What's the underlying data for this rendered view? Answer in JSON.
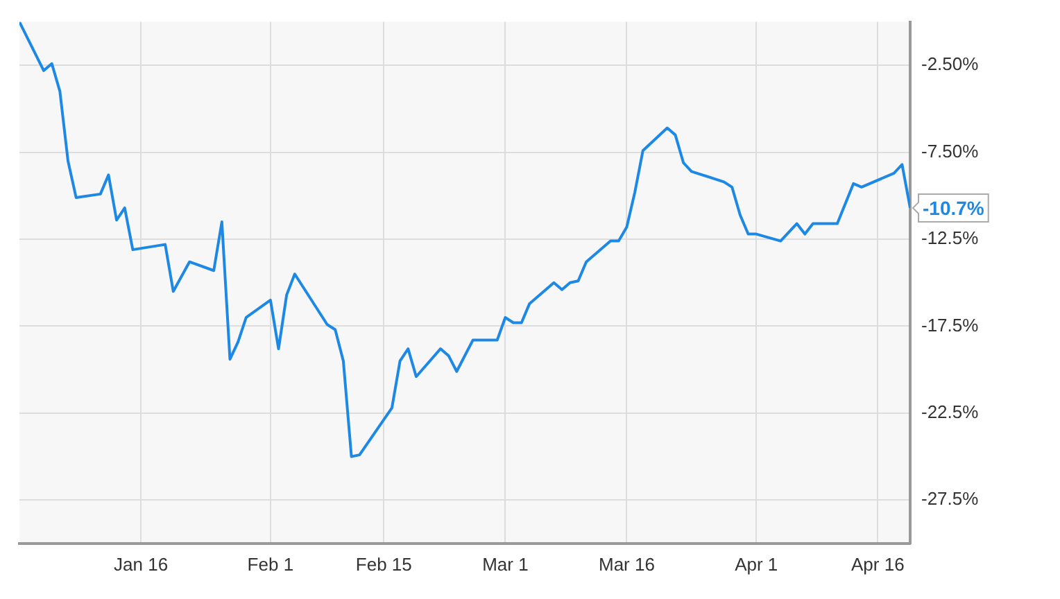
{
  "chart_data": {
    "type": "line",
    "x": [
      "--01-01",
      "--01-04",
      "--01-05",
      "--01-06",
      "--01-07",
      "--01-08",
      "--01-11",
      "--01-12",
      "--01-13",
      "--01-14",
      "--01-15",
      "--01-19",
      "--01-20",
      "--01-22",
      "--01-25",
      "--01-26",
      "--01-27",
      "--01-28",
      "--01-29",
      "--02-01",
      "--02-02",
      "--02-03",
      "--02-04",
      "--02-08",
      "--02-09",
      "--02-10",
      "--02-11",
      "--02-12",
      "--02-16",
      "--02-17",
      "--02-18",
      "--02-19",
      "--02-22",
      "--02-23",
      "--02-24",
      "--02-26",
      "--02-29",
      "--03-01",
      "--03-02",
      "--03-03",
      "--03-04",
      "--03-07",
      "--03-08",
      "--03-09",
      "--03-10",
      "--03-11",
      "--03-14",
      "--03-15",
      "--03-16",
      "--03-17",
      "--03-18",
      "--03-21",
      "--03-22",
      "--03-23",
      "--03-24",
      "--03-28",
      "--03-29",
      "--03-30",
      "--03-31",
      "--04-01",
      "--04-04",
      "--04-06",
      "--04-07",
      "--04-08",
      "--04-11",
      "--04-13",
      "--04-14",
      "--04-18",
      "--04-19",
      "--04-20"
    ],
    "series": [
      {
        "color": "#1e88e5",
        "values": [
          0.0,
          -2.8,
          -2.4,
          -4.0,
          -8.0,
          -10.1,
          -9.9,
          -8.8,
          -11.4,
          -10.7,
          -13.1,
          -12.8,
          -15.5,
          -13.8,
          -14.3,
          -11.5,
          -19.4,
          -18.4,
          -17.0,
          -16.0,
          -18.8,
          -15.7,
          -14.5,
          -17.4,
          -17.7,
          -19.5,
          -25.0,
          -24.9,
          -22.2,
          -19.5,
          -18.8,
          -20.4,
          -18.8,
          -19.2,
          -20.1,
          -18.3,
          -18.3,
          -17.0,
          -17.3,
          -17.3,
          -16.2,
          -15.0,
          -15.4,
          -15.0,
          -14.9,
          -13.8,
          -12.6,
          -12.6,
          -11.8,
          -9.8,
          -7.4,
          -6.1,
          -6.5,
          -8.1,
          -8.6,
          -9.2,
          -9.5,
          -11.1,
          -12.2,
          -12.2,
          -12.6,
          -11.6,
          -12.2,
          -11.6,
          -11.6,
          -9.3,
          -9.5,
          -8.7,
          -8.2,
          -10.7
        ]
      }
    ],
    "xlim": [
      "--01-01",
      "--04-20"
    ],
    "xticks": [
      {
        "value": "--01-16",
        "label": "Jan 16"
      },
      {
        "value": "--02-01",
        "label": "Feb 1"
      },
      {
        "value": "--02-15",
        "label": "Feb 15"
      },
      {
        "value": "--03-01",
        "label": "Mar 1"
      },
      {
        "value": "--03-16",
        "label": "Mar 16"
      },
      {
        "value": "--04-01",
        "label": "Apr 1"
      },
      {
        "value": "--04-16",
        "label": "Apr 16"
      }
    ],
    "ylim": [
      -30,
      0
    ],
    "yticks": [
      {
        "value": -2.5,
        "label": "-2.50%"
      },
      {
        "value": -7.5,
        "label": "-7.50%"
      },
      {
        "value": -12.5,
        "label": "-12.5%"
      },
      {
        "value": -17.5,
        "label": "-17.5%"
      },
      {
        "value": -22.5,
        "label": "-22.5%"
      },
      {
        "value": -27.5,
        "label": "-27.5%"
      }
    ],
    "annotations": [
      {
        "text": "-10.7%",
        "x": "--04-20",
        "y": -10.7
      }
    ],
    "grid": true,
    "legend": false,
    "marker": "none",
    "line_style": "solid"
  }
}
